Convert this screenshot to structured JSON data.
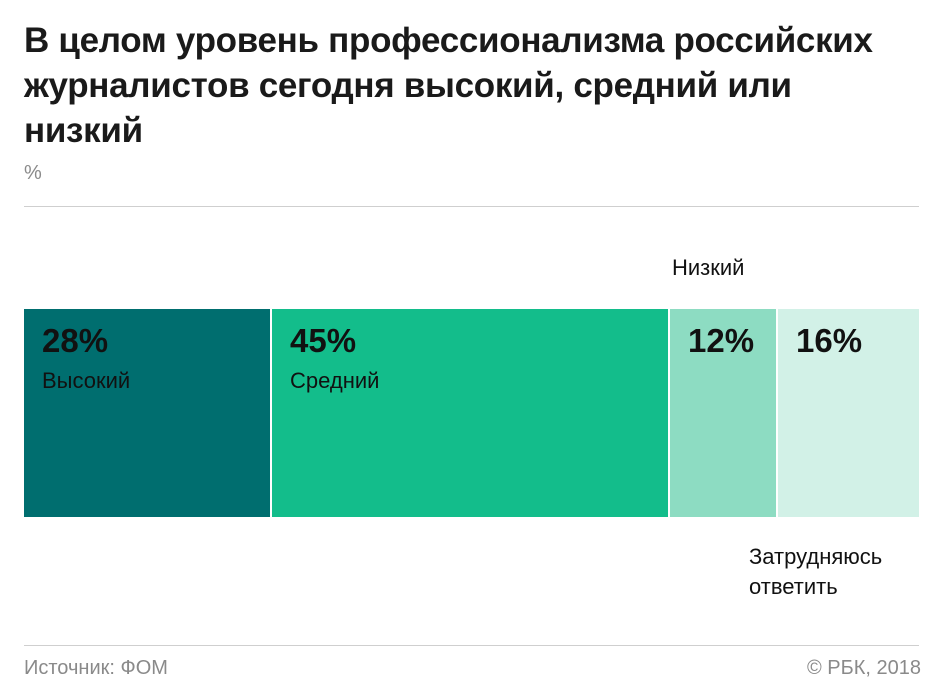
{
  "title": "В целом уровень профессионализма российских журналистов сегодня высокий, средний или низкий",
  "unit": "%",
  "source": "Источник: ФОМ",
  "credit": "© РБК, 2018",
  "chart_data": {
    "type": "bar",
    "orientation": "horizontal-stacked-100",
    "title": "В целом уровень профессионализма российских журналистов сегодня высокий, средний или низкий",
    "unit": "%",
    "categories": [
      "Высокий",
      "Средний",
      "Низкий",
      "Затрудняюсь ответить"
    ],
    "values": [
      28,
      45,
      12,
      16
    ],
    "value_labels": [
      "28%",
      "45%",
      "12%",
      "16%"
    ],
    "colors": [
      "#006e6f",
      "#13bd8b",
      "#8ddcc2",
      "#d2f1e7"
    ],
    "label_positions": [
      "inside",
      "inside",
      "above",
      "below"
    ]
  }
}
